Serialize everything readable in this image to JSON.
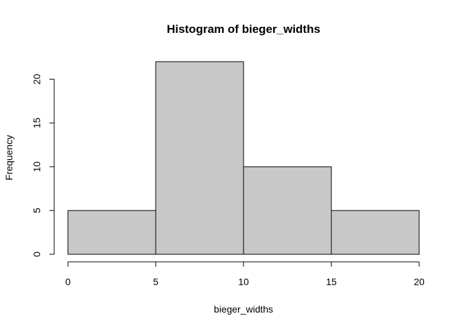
{
  "chart_data": {
    "type": "bar",
    "title": "Histogram of bieger_widths",
    "xlabel": "bieger_widths",
    "ylabel": "Frequency",
    "bins": [
      {
        "start": 0,
        "end": 5,
        "count": 5
      },
      {
        "start": 5,
        "end": 10,
        "count": 22
      },
      {
        "start": 10,
        "end": 15,
        "count": 10
      },
      {
        "start": 15,
        "end": 20,
        "count": 5
      }
    ],
    "xticks": [
      0,
      5,
      10,
      15,
      20
    ],
    "yticks": [
      0,
      5,
      10,
      15,
      20
    ],
    "xlim": [
      0,
      20
    ],
    "ylim": [
      0,
      22
    ],
    "bar_color": "#c8c8c8",
    "grid": false,
    "legend": "none"
  }
}
